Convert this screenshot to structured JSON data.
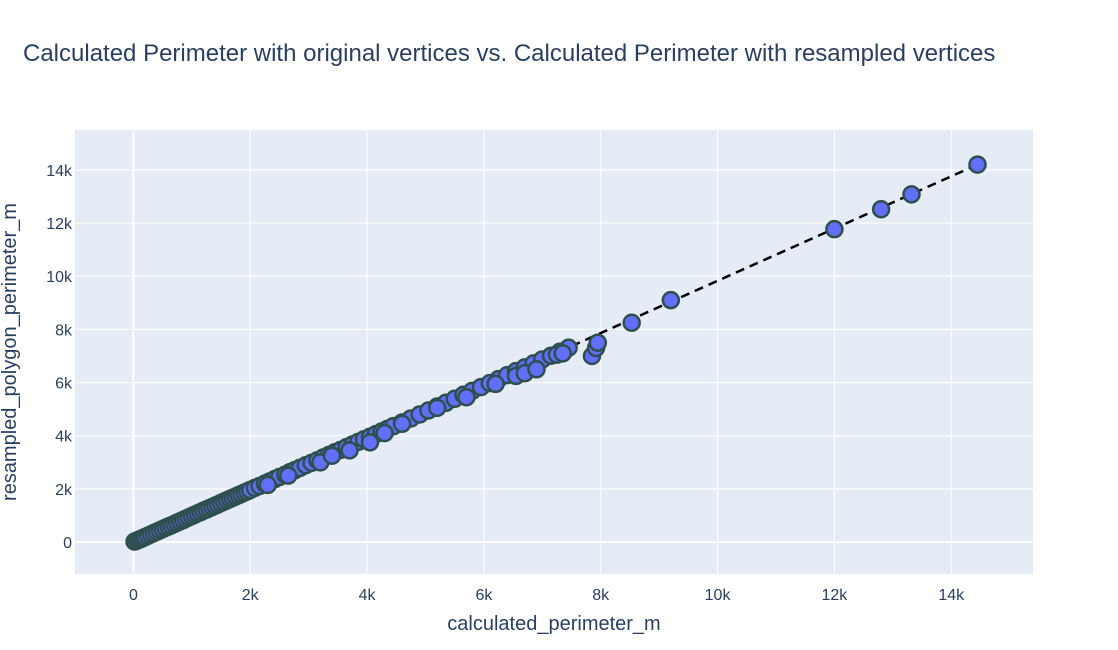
{
  "chart_data": {
    "type": "scatter",
    "title": "Calculated Perimeter with original vertices vs. Calculated Perimeter with resampled vertices",
    "xlabel": "calculated_perimeter_m",
    "ylabel": "resampled_polygon_perimeter_m",
    "xlim": [
      -1000,
      15400
    ],
    "ylim": [
      -1200,
      15500
    ],
    "x_ticks": [
      0,
      2000,
      4000,
      6000,
      8000,
      10000,
      12000,
      14000
    ],
    "x_tick_labels": [
      "0",
      "2k",
      "4k",
      "6k",
      "8k",
      "10k",
      "12k",
      "14k"
    ],
    "y_ticks": [
      0,
      2000,
      4000,
      6000,
      8000,
      10000,
      12000,
      14000
    ],
    "y_tick_labels": [
      "0",
      "2k",
      "4k",
      "6k",
      "8k",
      "10k",
      "12k",
      "14k"
    ],
    "grid": true,
    "reference_line": {
      "x": [
        0,
        14450
      ],
      "y": [
        0,
        14200
      ],
      "style": "dashed",
      "color": "#000000"
    },
    "colors": {
      "marker_fill": "#636efa",
      "marker_edge": "#2f4f4f",
      "plot_bg": "#e5ecf6",
      "grid": "#ffffff",
      "text": "#2a3f5f"
    },
    "series": [
      {
        "points": [
          [
            20,
            20
          ],
          [
            50,
            45
          ],
          [
            80,
            75
          ],
          [
            120,
            110
          ],
          [
            160,
            150
          ],
          [
            200,
            190
          ],
          [
            250,
            240
          ],
          [
            300,
            290
          ],
          [
            350,
            340
          ],
          [
            400,
            390
          ],
          [
            450,
            440
          ],
          [
            500,
            490
          ],
          [
            550,
            540
          ],
          [
            600,
            585
          ],
          [
            650,
            630
          ],
          [
            700,
            680
          ],
          [
            750,
            730
          ],
          [
            800,
            780
          ],
          [
            850,
            830
          ],
          [
            900,
            880
          ],
          [
            950,
            930
          ],
          [
            1000,
            980
          ],
          [
            1050,
            1030
          ],
          [
            1100,
            1080
          ],
          [
            1150,
            1125
          ],
          [
            1200,
            1180
          ],
          [
            1250,
            1225
          ],
          [
            1300,
            1275
          ],
          [
            1350,
            1320
          ],
          [
            1400,
            1370
          ],
          [
            1450,
            1420
          ],
          [
            1500,
            1470
          ],
          [
            1550,
            1520
          ],
          [
            1600,
            1570
          ],
          [
            1650,
            1620
          ],
          [
            1700,
            1665
          ],
          [
            1750,
            1715
          ],
          [
            1800,
            1765
          ],
          [
            1850,
            1810
          ],
          [
            1900,
            1860
          ],
          [
            1950,
            1910
          ],
          [
            2000,
            1960
          ],
          [
            2080,
            2040
          ],
          [
            2160,
            2110
          ],
          [
            2250,
            2200
          ],
          [
            2330,
            2280
          ],
          [
            2420,
            2370
          ],
          [
            2500,
            2450
          ],
          [
            2600,
            2540
          ],
          [
            2680,
            2630
          ],
          [
            2760,
            2700
          ],
          [
            2850,
            2790
          ],
          [
            2950,
            2890
          ],
          [
            3050,
            2980
          ],
          [
            3150,
            3080
          ],
          [
            3250,
            3180
          ],
          [
            3350,
            3280
          ],
          [
            3450,
            3380
          ],
          [
            3550,
            3470
          ],
          [
            3650,
            3570
          ],
          [
            3750,
            3670
          ],
          [
            3850,
            3770
          ],
          [
            3950,
            3870
          ],
          [
            4050,
            3960
          ],
          [
            4150,
            4060
          ],
          [
            4250,
            4160
          ],
          [
            4350,
            4260
          ],
          [
            4450,
            4360
          ],
          [
            4600,
            4500
          ],
          [
            4750,
            4650
          ],
          [
            4900,
            4800
          ],
          [
            5050,
            4950
          ],
          [
            5200,
            5100
          ],
          [
            5350,
            5240
          ],
          [
            5500,
            5390
          ],
          [
            5650,
            5540
          ],
          [
            5800,
            5690
          ],
          [
            5950,
            5830
          ],
          [
            6100,
            5980
          ],
          [
            6250,
            6130
          ],
          [
            6400,
            6280
          ],
          [
            6550,
            6430
          ],
          [
            6700,
            6570
          ],
          [
            6850,
            6720
          ],
          [
            7000,
            6870
          ],
          [
            7150,
            7010
          ],
          [
            7300,
            7160
          ],
          [
            7450,
            7310
          ],
          [
            2300,
            2150
          ],
          [
            2650,
            2500
          ],
          [
            3200,
            3000
          ],
          [
            3400,
            3250
          ],
          [
            3700,
            3450
          ],
          [
            4050,
            3750
          ],
          [
            4300,
            4100
          ],
          [
            4600,
            4450
          ],
          [
            5200,
            5050
          ],
          [
            5700,
            5450
          ],
          [
            6200,
            5950
          ],
          [
            6550,
            6250
          ],
          [
            6700,
            6350
          ],
          [
            6900,
            6500
          ],
          [
            7250,
            7050
          ],
          [
            7350,
            7100
          ],
          [
            7850,
            7000
          ],
          [
            7920,
            7300
          ],
          [
            7950,
            7500
          ],
          [
            8530,
            8250
          ],
          [
            9200,
            9100
          ],
          [
            12000,
            11770
          ],
          [
            12800,
            12520
          ],
          [
            13320,
            13080
          ],
          [
            14450,
            14200
          ]
        ]
      }
    ]
  }
}
